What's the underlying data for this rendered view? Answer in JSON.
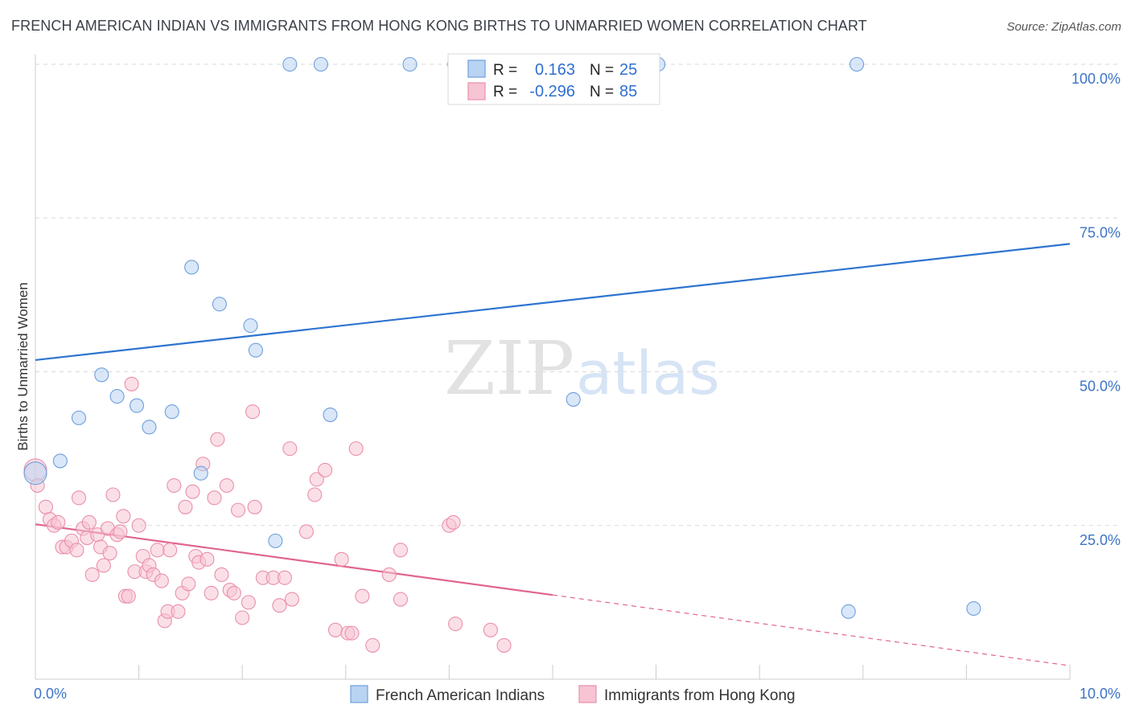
{
  "title": "FRENCH AMERICAN INDIAN VS IMMIGRANTS FROM HONG KONG BIRTHS TO UNMARRIED WOMEN CORRELATION CHART",
  "source": "Source: ZipAtlas.com",
  "watermark": {
    "zip": "ZIP",
    "atlas": "atlas"
  },
  "colors": {
    "blue_fill": "#b9d3f3",
    "blue_stroke": "#6f9fdc",
    "blue_line": "#2e74d0",
    "pink_fill": "#f7c4d3",
    "pink_stroke": "#e990ab",
    "pink_line": "#e0658f",
    "grid": "#d9d9d9",
    "tick_label": "#3d74c6"
  },
  "legend": {
    "r_label": "R =",
    "n_label": "N =",
    "entries": [
      {
        "r": "0.163",
        "n": "25"
      },
      {
        "r": "-0.296",
        "n": "85"
      }
    ]
  },
  "chart_data": {
    "type": "scatter",
    "xlabel": "",
    "ylabel": "Births to Unmarried Women",
    "xlim": [
      0,
      10
    ],
    "ylim": [
      0,
      100
    ],
    "x_tick_labels": [
      "0.0%",
      "10.0%"
    ],
    "y_tick_labels": [
      "100.0%",
      "75.0%",
      "50.0%",
      "25.0%"
    ],
    "y_tick_values": [
      100,
      75,
      50,
      25
    ],
    "series": [
      {
        "name": "French American Indians",
        "color": "blue",
        "trend": {
          "x": [
            0,
            10
          ],
          "y": [
            51.9,
            70.8
          ],
          "dashed_from": null
        },
        "points": [
          [
            0.0,
            33.5
          ],
          [
            0.24,
            35.5
          ],
          [
            0.42,
            42.5
          ],
          [
            0.64,
            49.5
          ],
          [
            0.79,
            46.0
          ],
          [
            0.98,
            44.5
          ],
          [
            1.1,
            41.0
          ],
          [
            1.32,
            43.5
          ],
          [
            1.51,
            67.0
          ],
          [
            1.6,
            33.5
          ],
          [
            1.78,
            61.0
          ],
          [
            2.08,
            57.5
          ],
          [
            2.13,
            53.5
          ],
          [
            2.32,
            22.5
          ],
          [
            2.46,
            100.0
          ],
          [
            2.76,
            100.0
          ],
          [
            2.85,
            43.0
          ],
          [
            3.62,
            100.0
          ],
          [
            4.05,
            100.0
          ],
          [
            4.08,
            100.0
          ],
          [
            5.2,
            45.5
          ],
          [
            6.02,
            100.0
          ],
          [
            7.94,
            100.0
          ],
          [
            7.86,
            11.0
          ],
          [
            9.07,
            11.5
          ]
        ]
      },
      {
        "name": "Immigrants from Hong Kong",
        "color": "pink",
        "trend": {
          "x": [
            0,
            10
          ],
          "y": [
            25.2,
            2.2
          ],
          "solid_until": 5.0
        },
        "points": [
          [
            0.0,
            34.0
          ],
          [
            0.02,
            31.5
          ],
          [
            0.1,
            28.0
          ],
          [
            0.14,
            26.0
          ],
          [
            0.18,
            25.0
          ],
          [
            0.22,
            25.5
          ],
          [
            0.26,
            21.5
          ],
          [
            0.3,
            21.5
          ],
          [
            0.35,
            22.5
          ],
          [
            0.4,
            21.0
          ],
          [
            0.42,
            29.5
          ],
          [
            0.46,
            24.5
          ],
          [
            0.5,
            23.0
          ],
          [
            0.52,
            25.5
          ],
          [
            0.55,
            17.0
          ],
          [
            0.6,
            23.5
          ],
          [
            0.63,
            21.5
          ],
          [
            0.66,
            18.5
          ],
          [
            0.7,
            24.5
          ],
          [
            0.72,
            20.5
          ],
          [
            0.75,
            30.0
          ],
          [
            0.79,
            23.5
          ],
          [
            0.82,
            24.0
          ],
          [
            0.85,
            26.5
          ],
          [
            0.87,
            13.5
          ],
          [
            0.9,
            13.5
          ],
          [
            0.93,
            48.0
          ],
          [
            0.96,
            17.5
          ],
          [
            1.0,
            25.0
          ],
          [
            1.04,
            20.0
          ],
          [
            1.07,
            17.5
          ],
          [
            1.1,
            18.5
          ],
          [
            1.14,
            17.0
          ],
          [
            1.18,
            21.0
          ],
          [
            1.22,
            16.0
          ],
          [
            1.25,
            9.5
          ],
          [
            1.28,
            11.0
          ],
          [
            1.3,
            21.0
          ],
          [
            1.34,
            31.5
          ],
          [
            1.38,
            11.0
          ],
          [
            1.42,
            14.0
          ],
          [
            1.45,
            28.0
          ],
          [
            1.48,
            15.5
          ],
          [
            1.52,
            30.5
          ],
          [
            1.55,
            20.0
          ],
          [
            1.58,
            19.0
          ],
          [
            1.62,
            35.0
          ],
          [
            1.66,
            19.5
          ],
          [
            1.7,
            14.0
          ],
          [
            1.73,
            29.5
          ],
          [
            1.76,
            39.0
          ],
          [
            1.8,
            17.0
          ],
          [
            1.85,
            31.5
          ],
          [
            1.88,
            14.5
          ],
          [
            1.92,
            14.0
          ],
          [
            1.96,
            27.5
          ],
          [
            2.0,
            10.0
          ],
          [
            2.06,
            12.5
          ],
          [
            2.1,
            43.5
          ],
          [
            2.12,
            28.0
          ],
          [
            2.2,
            16.5
          ],
          [
            2.3,
            16.5
          ],
          [
            2.36,
            12.0
          ],
          [
            2.41,
            16.5
          ],
          [
            2.46,
            37.5
          ],
          [
            2.48,
            13.0
          ],
          [
            2.62,
            24.0
          ],
          [
            2.7,
            30.0
          ],
          [
            2.72,
            32.5
          ],
          [
            2.8,
            34.0
          ],
          [
            2.9,
            8.0
          ],
          [
            2.96,
            19.5
          ],
          [
            3.02,
            7.5
          ],
          [
            3.06,
            7.5
          ],
          [
            3.1,
            37.5
          ],
          [
            3.16,
            13.5
          ],
          [
            3.26,
            5.5
          ],
          [
            3.42,
            17.0
          ],
          [
            3.53,
            13.0
          ],
          [
            3.53,
            21.0
          ],
          [
            4.0,
            25.0
          ],
          [
            4.04,
            25.5
          ],
          [
            4.06,
            9.0
          ],
          [
            4.4,
            8.0
          ],
          [
            4.53,
            5.5
          ]
        ]
      }
    ]
  },
  "bottom_legend": [
    {
      "label": "French American Indians"
    },
    {
      "label": "Immigrants from Hong Kong"
    }
  ]
}
